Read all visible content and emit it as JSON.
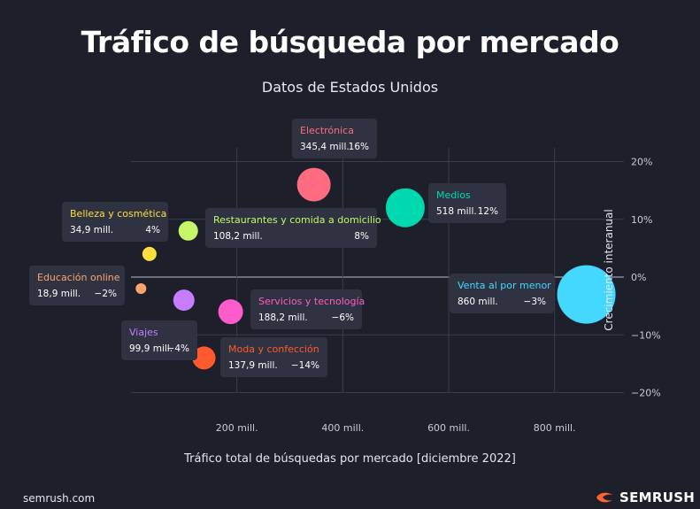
{
  "title": "Tráfico de búsqueda por mercado",
  "subtitle": "Datos de Estados Unidos",
  "footer": {
    "source": "semrush.com",
    "brand": "SEMRUSH"
  },
  "colors": {
    "background": "#1d1f2b",
    "tooltip": "#2f3240",
    "grid": "#3a3d4c",
    "zero_line": "#9a9cab",
    "brand_accent": "#ff642d"
  },
  "chart_data": {
    "type": "scatter",
    "title": "Tráfico de búsqueda por mercado",
    "subtitle": "Datos de Estados Unidos",
    "xlabel": "Tráfico total de búsquedas por mercado [diciembre 2022]",
    "ylabel": "Crecimiento interanual",
    "xlim": [
      0,
      950
    ],
    "ylim": [
      -20,
      20
    ],
    "x_ticks": [
      200,
      400,
      600,
      800
    ],
    "x_tick_labels": [
      "200 mill.",
      "400 mill.",
      "600 mill.",
      "800 mill."
    ],
    "y_ticks": [
      20,
      10,
      0,
      -10,
      -20
    ],
    "y_tick_labels": [
      "20%",
      "10%",
      "0%",
      "−10%",
      "−20%"
    ],
    "grid": true,
    "series": [
      {
        "name": "Electrónica",
        "x": 345.4,
        "y": 16,
        "value_label": "345,4 mill.",
        "pct_label": "16%",
        "color": "#ff6b81"
      },
      {
        "name": "Medios",
        "x": 518,
        "y": 12,
        "value_label": "518 mill.",
        "pct_label": "12%",
        "color": "#00d9b0"
      },
      {
        "name": "Belleza y cosmética",
        "x": 34.9,
        "y": 4,
        "value_label": "34,9 mill.",
        "pct_label": "4%",
        "color": "#ffdf3d"
      },
      {
        "name": "Restaurantes y comida a domicilio",
        "x": 108.2,
        "y": 8,
        "value_label": "108,2 mill.",
        "pct_label": "8%",
        "color": "#c6f56a"
      },
      {
        "name": "Educación online",
        "x": 18.9,
        "y": -2,
        "value_label": "18,9 mill.",
        "pct_label": "−2%",
        "color": "#ffa46b"
      },
      {
        "name": "Venta al por menor",
        "x": 860,
        "y": -3,
        "value_label": "860 mill.",
        "pct_label": "−3%",
        "color": "#45d8ff"
      },
      {
        "name": "Servicios y tecnología",
        "x": 188.2,
        "y": -6,
        "value_label": "188,2 mill.",
        "pct_label": "−6%",
        "color": "#ff5ccb"
      },
      {
        "name": "Viajes",
        "x": 99.9,
        "y": -4,
        "value_label": "99,9 mill.",
        "pct_label": "−4%",
        "color": "#c67dff"
      },
      {
        "name": "Moda y confección",
        "x": 137.9,
        "y": -14,
        "value_label": "137,9 mill.",
        "pct_label": "−14%",
        "color": "#ff5a2e"
      }
    ]
  }
}
